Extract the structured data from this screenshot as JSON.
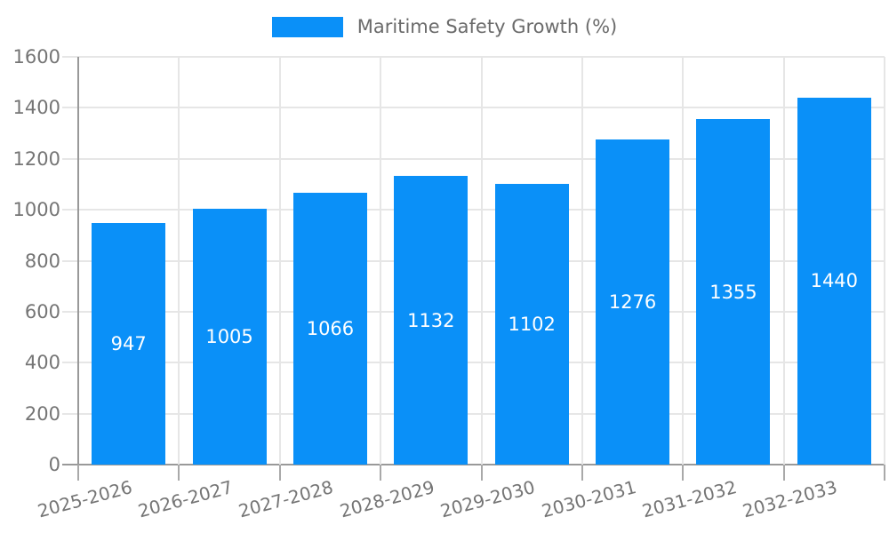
{
  "legend": {
    "label": "Maritime Safety Growth (%)"
  },
  "chart_data": {
    "type": "bar",
    "title": "Maritime Safety Growth (%)",
    "series_name": "Maritime Safety Growth (%)",
    "categories": [
      "2025-2026",
      "2026-2027",
      "2027-2028",
      "2028-2029",
      "2029-2030",
      "2030-2031",
      "2031-2032",
      "2032-2033"
    ],
    "values": [
      947,
      1005,
      1066,
      1132,
      1102,
      1276,
      1355,
      1440
    ],
    "value_labels_shown": true,
    "value_label_position": "center",
    "xlabel": "",
    "ylabel": "",
    "ylim": [
      0,
      1600
    ],
    "ytick_step": 200,
    "y_tick_labels": [
      "0",
      "200",
      "400",
      "600",
      "800",
      "1000",
      "1200",
      "1400",
      "1600"
    ],
    "grid": true,
    "legend_position": "top-center",
    "x_label_rotation_deg": -15,
    "colors": {
      "bar": "#0a90f8",
      "axis": "#999999",
      "gridline": "#e6e6e6",
      "bottom_tick": "#a9a9a9",
      "axis_text": "#757575",
      "legend_text": "#6b6b6b",
      "value_text": "#ffffff",
      "background": "#ffffff"
    }
  }
}
